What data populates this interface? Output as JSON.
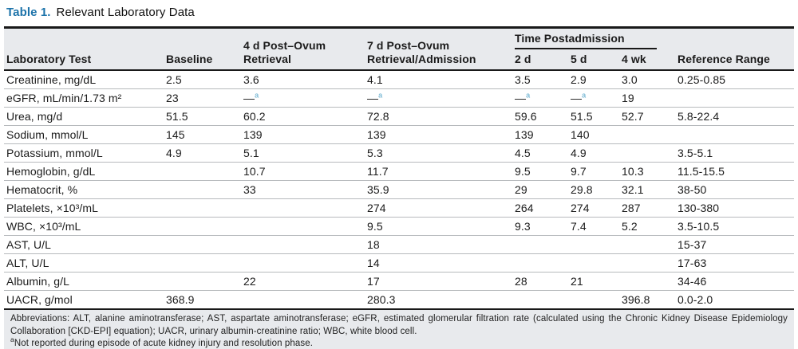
{
  "title": {
    "label": "Table 1.",
    "text": "Relevant Laboratory Data"
  },
  "colors": {
    "title_accent": "#1c73aa",
    "not_reported_marker": "#58a6ca",
    "header_bg": "#e8eaed",
    "footnote_bg": "#e8eaed",
    "rule": "#191919"
  },
  "table": {
    "columns": [
      "Laboratory Test",
      "Baseline",
      "4 d Post–Ovum Retrieval",
      "7 d Post–Ovum Retrieval/Admission",
      "2 d",
      "5 d",
      "4 wk",
      "Reference Range"
    ],
    "group_header": "Time Postadmission",
    "not_reported_value": "—ᵃ",
    "rows": [
      [
        "Creatinine, mg/dL",
        "2.5",
        "3.6",
        "4.1",
        "3.5",
        "2.9",
        "3.0",
        "0.25-0.85"
      ],
      [
        "eGFR, mL/min/1.73 m²",
        "23",
        "—ᵃ",
        "—ᵃ",
        "—ᵃ",
        "—ᵃ",
        "19",
        ""
      ],
      [
        "Urea, mg/d",
        "51.5",
        "60.2",
        "72.8",
        "59.6",
        "51.5",
        "52.7",
        "5.8-22.4"
      ],
      [
        "Sodium, mmol/L",
        "145",
        "139",
        "139",
        "139",
        "140",
        "",
        ""
      ],
      [
        "Potassium, mmol/L",
        "4.9",
        "5.1",
        "5.3",
        "4.5",
        "4.9",
        "",
        "3.5-5.1"
      ],
      [
        "Hemoglobin, g/dL",
        "",
        "10.7",
        "11.7",
        "9.5",
        "9.7",
        "10.3",
        "11.5-15.5"
      ],
      [
        "Hematocrit, %",
        "",
        "33",
        "35.9",
        "29",
        "29.8",
        "32.1",
        "38-50"
      ],
      [
        "Platelets, ×10³/mL",
        "",
        "",
        "274",
        "264",
        "274",
        "287",
        "130-380"
      ],
      [
        "WBC, ×10³/mL",
        "",
        "",
        "9.5",
        "9.3",
        "7.4",
        "5.2",
        "3.5-10.5"
      ],
      [
        "AST, U/L",
        "",
        "",
        "18",
        "",
        "",
        "",
        "15-37"
      ],
      [
        "ALT, U/L",
        "",
        "",
        "14",
        "",
        "",
        "",
        "17-63"
      ],
      [
        "Albumin, g/L",
        "",
        "22",
        "17",
        "28",
        "21",
        "",
        "34-46"
      ],
      [
        "UACR, g/mol",
        "368.9",
        "",
        "280.3",
        "",
        "",
        "396.8",
        "0.0-2.0"
      ]
    ]
  },
  "footnotes": {
    "abbreviations": "Abbreviations: ALT, alanine aminotransferase; AST, aspartate aminotransferase; eGFR, estimated glomerular filtration rate (calculated using the Chronic Kidney Disease Epidemiology Collaboration [CKD-EPI] equation); UACR, urinary albumin-creatinine ratio; WBC, white blood cell.",
    "note_marker": "a",
    "note_text": "Not reported during episode of acute kidney injury and resolution phase."
  }
}
